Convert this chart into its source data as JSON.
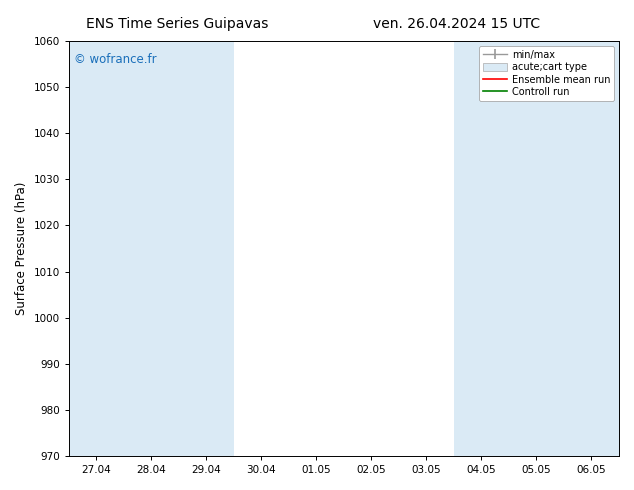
{
  "title_left": "ENS Time Series Guipavas",
  "title_right": "ven. 26.04.2024 15 UTC",
  "ylabel": "Surface Pressure (hPa)",
  "ylim": [
    970,
    1060
  ],
  "yticks": [
    970,
    980,
    990,
    1000,
    1010,
    1020,
    1030,
    1040,
    1050,
    1060
  ],
  "xlabels": [
    "27.04",
    "28.04",
    "29.04",
    "30.04",
    "01.05",
    "02.05",
    "03.05",
    "04.05",
    "05.05",
    "06.05"
  ],
  "x_positions": [
    0,
    1,
    2,
    3,
    4,
    5,
    6,
    7,
    8,
    9
  ],
  "band_color": "#daeaf5",
  "watermark": "© wofrance.fr",
  "watermark_color": "#1a6fba",
  "legend_items": [
    {
      "label": "min/max",
      "type": "errorbar",
      "color": "#aaaaaa"
    },
    {
      "label": "acute;cart type",
      "type": "box",
      "color": "#c8dcea"
    },
    {
      "label": "Ensemble mean run",
      "type": "line",
      "color": "#ff0000"
    },
    {
      "label": "Controll run",
      "type": "line",
      "color": "#008000"
    }
  ],
  "title_fontsize": 10,
  "tick_fontsize": 7.5,
  "axis_label_fontsize": 8.5,
  "background_color": "#ffffff",
  "shaded_x_indices": [
    0,
    1,
    2,
    7,
    8,
    9
  ]
}
